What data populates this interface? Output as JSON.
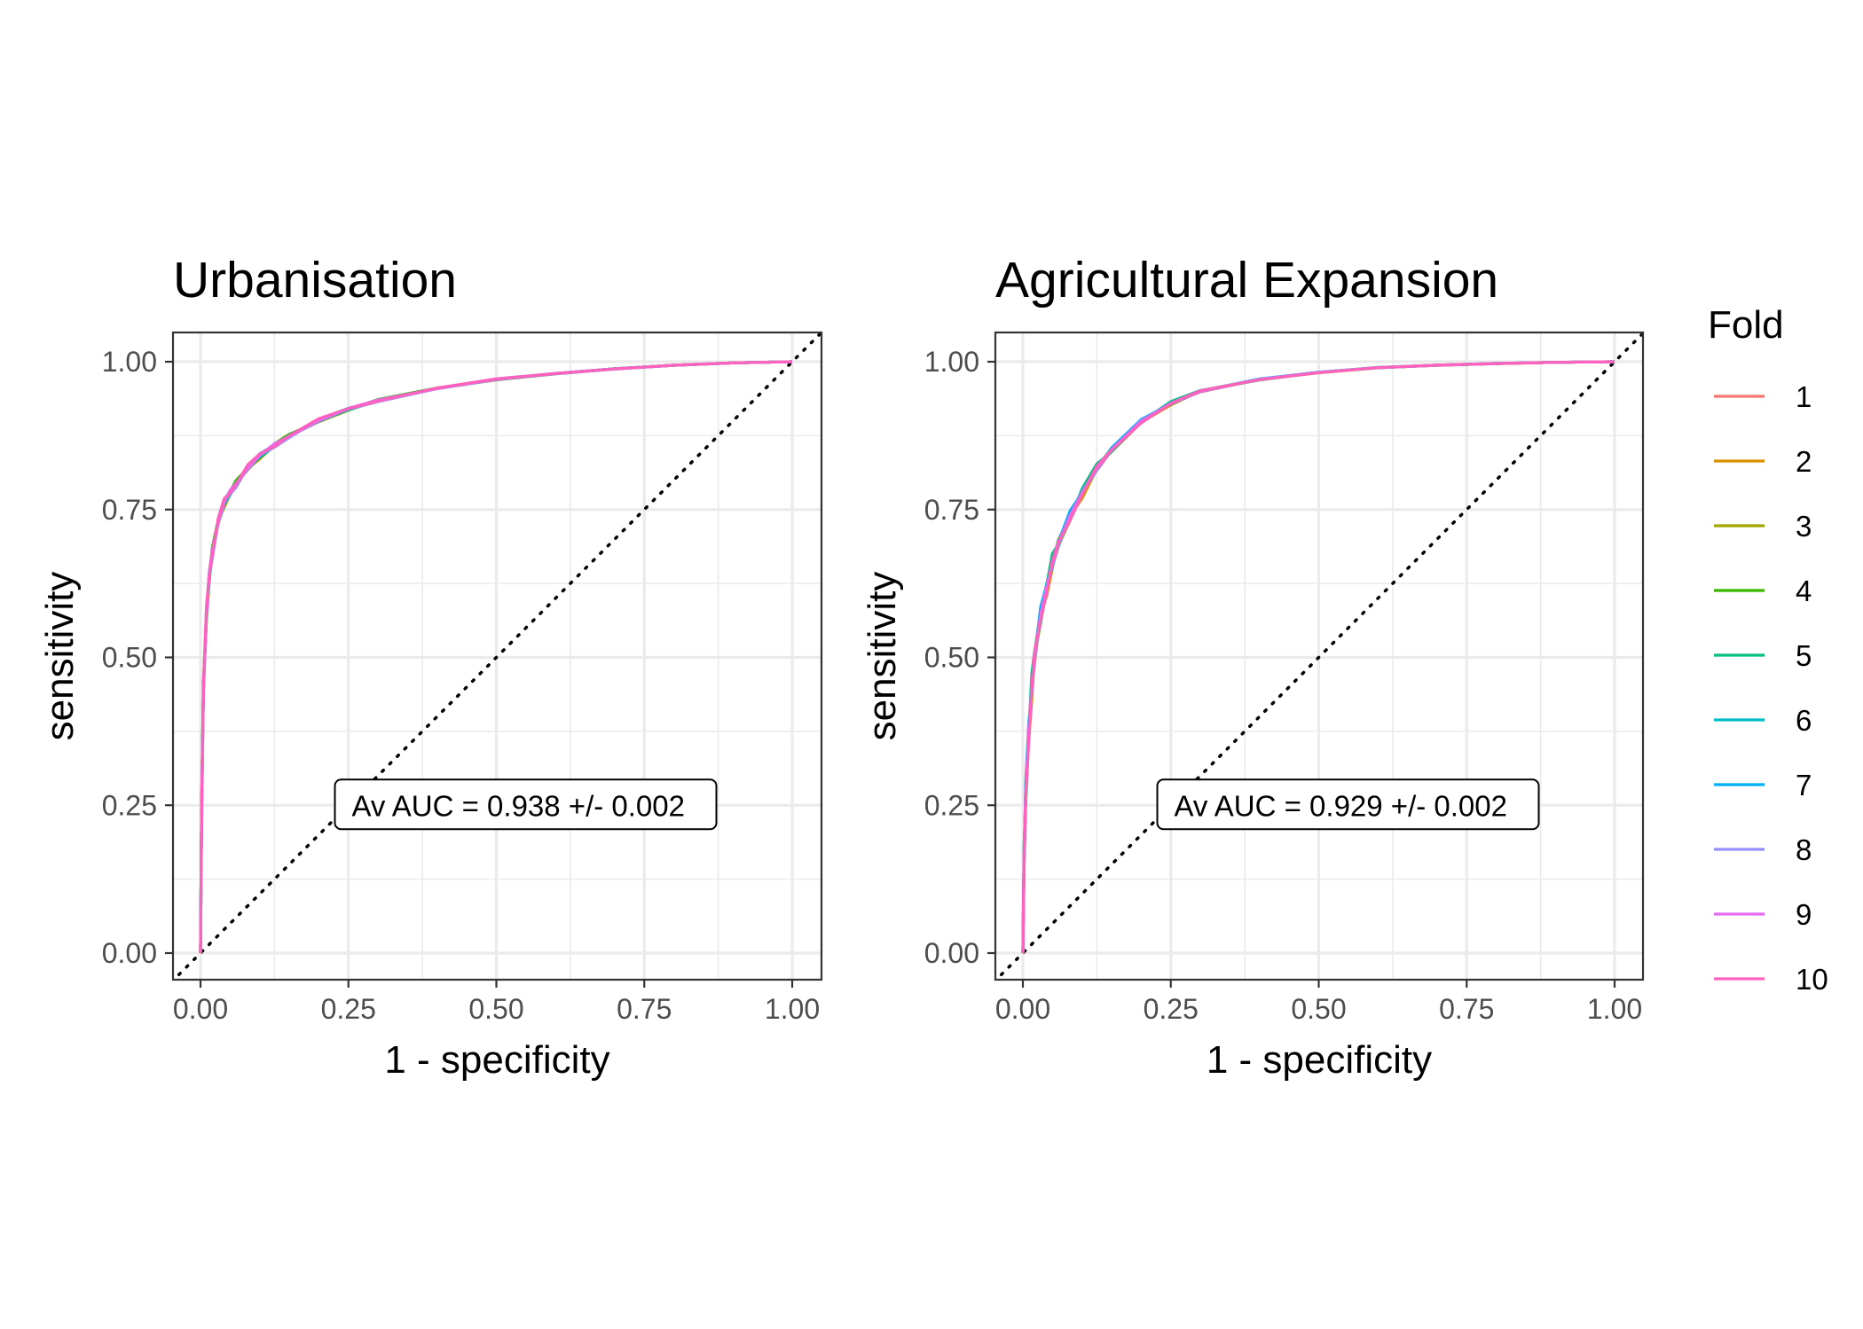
{
  "legend": {
    "title": "Fold",
    "entries": [
      {
        "label": "1",
        "color": "#F8766D"
      },
      {
        "label": "2",
        "color": "#D89000"
      },
      {
        "label": "3",
        "color": "#A3A500"
      },
      {
        "label": "4",
        "color": "#39B600"
      },
      {
        "label": "5",
        "color": "#00BF7D"
      },
      {
        "label": "6",
        "color": "#00BFC4"
      },
      {
        "label": "7",
        "color": "#00B0F6"
      },
      {
        "label": "8",
        "color": "#9590FF"
      },
      {
        "label": "9",
        "color": "#E76BF3"
      },
      {
        "label": "10",
        "color": "#FF62BC"
      }
    ]
  },
  "chart_data": [
    {
      "type": "line",
      "title": "Urbanisation",
      "xlabel": "1 - specificity",
      "ylabel": "sensitivity",
      "xlim": [
        0,
        1
      ],
      "ylim": [
        0,
        1
      ],
      "x_ticks": [
        "0.00",
        "0.25",
        "0.50",
        "0.75",
        "1.00"
      ],
      "y_ticks": [
        "0.00",
        "0.25",
        "0.50",
        "0.75",
        "1.00"
      ],
      "grid": true,
      "reference_line": "diagonal, dotted",
      "annotation": {
        "text": "Av AUC = 0.938 +/- 0.002",
        "x": 0.5,
        "y": 0.25
      },
      "curve_template": {
        "x": [
          0,
          0.002,
          0.005,
          0.01,
          0.015,
          0.02,
          0.03,
          0.04,
          0.05,
          0.06,
          0.08,
          0.1,
          0.125,
          0.15,
          0.2,
          0.25,
          0.3,
          0.4,
          0.5,
          0.6,
          0.7,
          0.8,
          0.9,
          1.0
        ],
        "y": [
          0,
          0.25,
          0.45,
          0.57,
          0.64,
          0.68,
          0.73,
          0.76,
          0.78,
          0.795,
          0.82,
          0.84,
          0.86,
          0.875,
          0.9,
          0.92,
          0.935,
          0.955,
          0.97,
          0.98,
          0.988,
          0.994,
          0.998,
          1.0
        ]
      },
      "series": [
        {
          "name": "1",
          "offset": 0.0
        },
        {
          "name": "2",
          "offset": -0.006
        },
        {
          "name": "3",
          "offset": -0.003
        },
        {
          "name": "4",
          "offset": 0.004
        },
        {
          "name": "5",
          "offset": -0.005
        },
        {
          "name": "6",
          "offset": 0.006
        },
        {
          "name": "7",
          "offset": -0.002
        },
        {
          "name": "8",
          "offset": -0.008
        },
        {
          "name": "9",
          "offset": 0.003
        },
        {
          "name": "10",
          "offset": 0.008
        }
      ]
    },
    {
      "type": "line",
      "title": "Agricultural Expansion",
      "xlabel": "1 - specificity",
      "ylabel": "sensitivity",
      "xlim": [
        0,
        1
      ],
      "ylim": [
        0,
        1
      ],
      "x_ticks": [
        "0.00",
        "0.25",
        "0.50",
        "0.75",
        "1.00"
      ],
      "y_ticks": [
        "0.00",
        "0.25",
        "0.50",
        "0.75",
        "1.00"
      ],
      "grid": true,
      "reference_line": "diagonal, dotted",
      "annotation": {
        "text": "Av AUC = 0.929 +/- 0.002",
        "x": 0.5,
        "y": 0.25
      },
      "curve_template": {
        "x": [
          0,
          0.002,
          0.005,
          0.01,
          0.015,
          0.02,
          0.03,
          0.04,
          0.05,
          0.06,
          0.08,
          0.1,
          0.125,
          0.15,
          0.2,
          0.25,
          0.3,
          0.4,
          0.5,
          0.6,
          0.7,
          0.8,
          0.9,
          1.0
        ],
        "y": [
          0,
          0.15,
          0.27,
          0.38,
          0.45,
          0.5,
          0.57,
          0.62,
          0.66,
          0.69,
          0.74,
          0.78,
          0.82,
          0.85,
          0.9,
          0.93,
          0.95,
          0.97,
          0.982,
          0.99,
          0.994,
          0.997,
          0.999,
          1.0
        ]
      },
      "series": [
        {
          "name": "1",
          "offset": -0.004
        },
        {
          "name": "2",
          "offset": -0.01
        },
        {
          "name": "3",
          "offset": -0.006
        },
        {
          "name": "4",
          "offset": 0.005
        },
        {
          "name": "5",
          "offset": 0.009
        },
        {
          "name": "6",
          "offset": 0.002
        },
        {
          "name": "7",
          "offset": 0.007
        },
        {
          "name": "8",
          "offset": 0.004
        },
        {
          "name": "9",
          "offset": -0.002
        },
        {
          "name": "10",
          "offset": -0.007
        }
      ]
    }
  ]
}
